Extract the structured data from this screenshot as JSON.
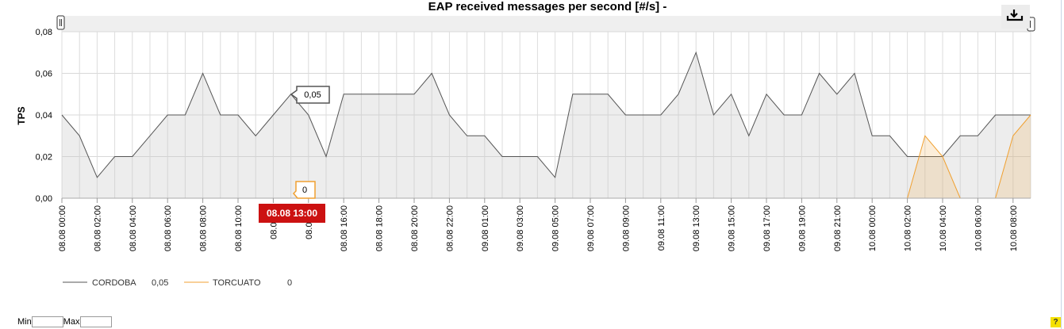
{
  "chart_data": {
    "type": "area",
    "title": "EAP received messages per second [#/s] -",
    "xlabel": "",
    "ylabel": "TPS",
    "ylim": [
      0,
      0.08
    ],
    "y_ticks": [
      "0,00",
      "0,02",
      "0,04",
      "0,06",
      "0,08"
    ],
    "x_tick_labels": [
      "08.08 00:00",
      "08.08 02:00",
      "08.08 04:00",
      "08.08 06:00",
      "08.08 08:00",
      "08.08 10:00",
      "08.08 12",
      "08.08 14",
      "08.08 16:00",
      "08.08 18:00",
      "08.08 20:00",
      "08.08 22:00",
      "09.08 01:00",
      "09.08 03:00",
      "09.08 05:00",
      "09.08 07:00",
      "09.08 09:00",
      "09.08 11:00",
      "09.08 13:00",
      "09.08 15:00",
      "09.08 17:00",
      "09.08 19:00",
      "09.08 21:00",
      "10.08 00:00",
      "10.08 02:00",
      "10.08 04:00",
      "10.08 06:00",
      "10.08 08:00"
    ],
    "grid": true,
    "legend_position": "bottom-left",
    "series": [
      {
        "name": "CORDOBA",
        "color": "#555555",
        "current_value": "0,05",
        "values": [
          0.04,
          0.03,
          0.01,
          0.02,
          0.02,
          0.03,
          0.04,
          0.04,
          0.06,
          0.04,
          0.04,
          0.03,
          0.04,
          0.05,
          0.04,
          0.02,
          0.05,
          0.05,
          0.05,
          0.05,
          0.05,
          0.06,
          0.04,
          0.03,
          0.03,
          0.02,
          0.02,
          0.02,
          0.01,
          0.05,
          0.05,
          0.05,
          0.04,
          0.04,
          0.04,
          0.05,
          0.07,
          0.04,
          0.05,
          0.03,
          0.05,
          0.04,
          0.04,
          0.06,
          0.05,
          0.06,
          0.03,
          0.03,
          0.02,
          0.02,
          0.02,
          0.03,
          0.03,
          0.04,
          0.04,
          0.04
        ]
      },
      {
        "name": "TORCUATO",
        "color": "#f0a030",
        "current_value": "0",
        "values": [
          0,
          0,
          0,
          0,
          0,
          0,
          0,
          0,
          0,
          0,
          0,
          0,
          0,
          0,
          0,
          0,
          0,
          0,
          0,
          0,
          0,
          0,
          0,
          0,
          0,
          0,
          0,
          0,
          0,
          0,
          0,
          0,
          0,
          0,
          0,
          0,
          0,
          0,
          0,
          0,
          0,
          0,
          0,
          0,
          0,
          0,
          0,
          0,
          0,
          0.03,
          0.02,
          0,
          0,
          0,
          0.03,
          0.04
        ]
      }
    ],
    "tooltips": {
      "x_label": "08.08 13:00",
      "cordoba_value": "0,05",
      "torcuato_value": "0"
    }
  },
  "ui": {
    "download_icon": "download-icon",
    "min_label": "Min",
    "max_label": "Max",
    "min_value": "",
    "max_value": "",
    "help_label": "?",
    "help_color": "#f5e100"
  }
}
